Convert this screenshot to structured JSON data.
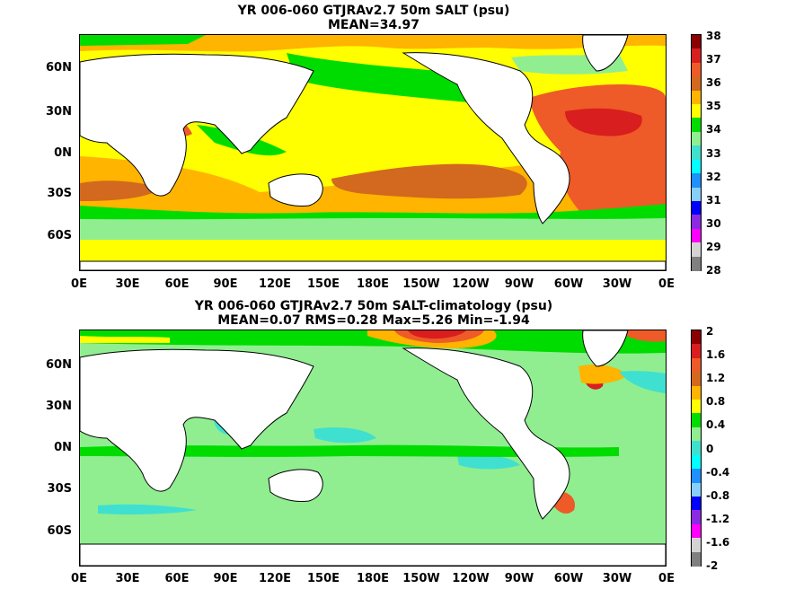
{
  "panels": [
    {
      "title_line1": "YR 006-060 GTJRAv2.7 50m SALT (psu)",
      "title_line2": "MEAN=34.97",
      "lat_labels": [
        "60N",
        "30N",
        "0N",
        "30S",
        "60S"
      ],
      "lon_labels": [
        "0E",
        "30E",
        "60E",
        "90E",
        "120E",
        "150E",
        "180E",
        "150W",
        "120W",
        "90W",
        "60W",
        "30W",
        "0E"
      ],
      "colorbar": {
        "labels": [
          "38",
          "37",
          "36",
          "35",
          "34",
          "33",
          "32",
          "31",
          "30",
          "29",
          "28"
        ],
        "colors": [
          "#8b0000",
          "#d81e1e",
          "#ee5a28",
          "#d2691e",
          "#ffb400",
          "#ffff00",
          "#00dc00",
          "#90ee90",
          "#40e0d0",
          "#00ffff",
          "#1e90ff",
          "#87cefa",
          "#0000ff",
          "#8a2be2",
          "#ff00ff",
          "#d3d3d3",
          "#808080"
        ]
      }
    },
    {
      "title_line1": "YR 006-060 GTJRAv2.7 50m SALT-climatology (psu)",
      "title_line2": "MEAN=0.07   RMS=0.28   Max=5.26   Min=-1.94",
      "lat_labels": [
        "60N",
        "30N",
        "0N",
        "30S",
        "60S"
      ],
      "lon_labels": [
        "0E",
        "30E",
        "60E",
        "90E",
        "120E",
        "150E",
        "180E",
        "150W",
        "120W",
        "90W",
        "60W",
        "30W",
        "0E"
      ],
      "colorbar": {
        "labels": [
          "2",
          "1.6",
          "1.2",
          "0.8",
          "0.4",
          "0",
          "-0.4",
          "-0.8",
          "-1.2",
          "-1.6",
          "-2"
        ],
        "colors": [
          "#8b0000",
          "#d81e1e",
          "#ee5a28",
          "#d2691e",
          "#ffb400",
          "#ffff00",
          "#00dc00",
          "#90ee90",
          "#40e0d0",
          "#00ffff",
          "#1e90ff",
          "#87cefa",
          "#0000ff",
          "#8a2be2",
          "#ff00ff",
          "#d3d3d3",
          "#808080"
        ]
      }
    }
  ],
  "map_colors": {
    "land": "#ffffff",
    "coast": "#000000",
    "top_ocean": "#ffff00",
    "bottom_ocean": "#90ee90"
  }
}
